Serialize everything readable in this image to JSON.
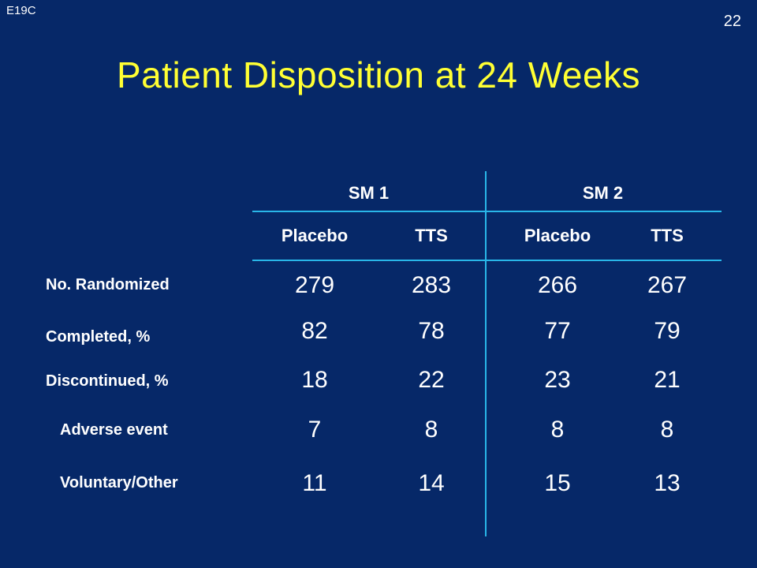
{
  "slide": {
    "corner_id": "E19C",
    "page_number": "22",
    "title": "Patient Disposition at 24 Weeks"
  },
  "colors": {
    "background": "#062868",
    "title": "#ffff33",
    "divider": "#29b6e8",
    "text": "#ffffff"
  },
  "table": {
    "groups": [
      "SM 1",
      "SM 2"
    ],
    "columns": [
      "Placebo",
      "TTS",
      "Placebo",
      "TTS"
    ],
    "rows": [
      {
        "label": "No. Randomized",
        "values": [
          "279",
          "283",
          "266",
          "267"
        ]
      },
      {
        "label": "Completed, %",
        "values": [
          "82",
          "78",
          "77",
          "79"
        ]
      },
      {
        "label": "Discontinued, %",
        "values": [
          "18",
          "22",
          "23",
          "21"
        ]
      },
      {
        "label": "Adverse event",
        "values": [
          "7",
          "8",
          "8",
          "8"
        ]
      },
      {
        "label": "Voluntary/Other",
        "values": [
          "11",
          "14",
          "15",
          "13"
        ]
      }
    ]
  }
}
